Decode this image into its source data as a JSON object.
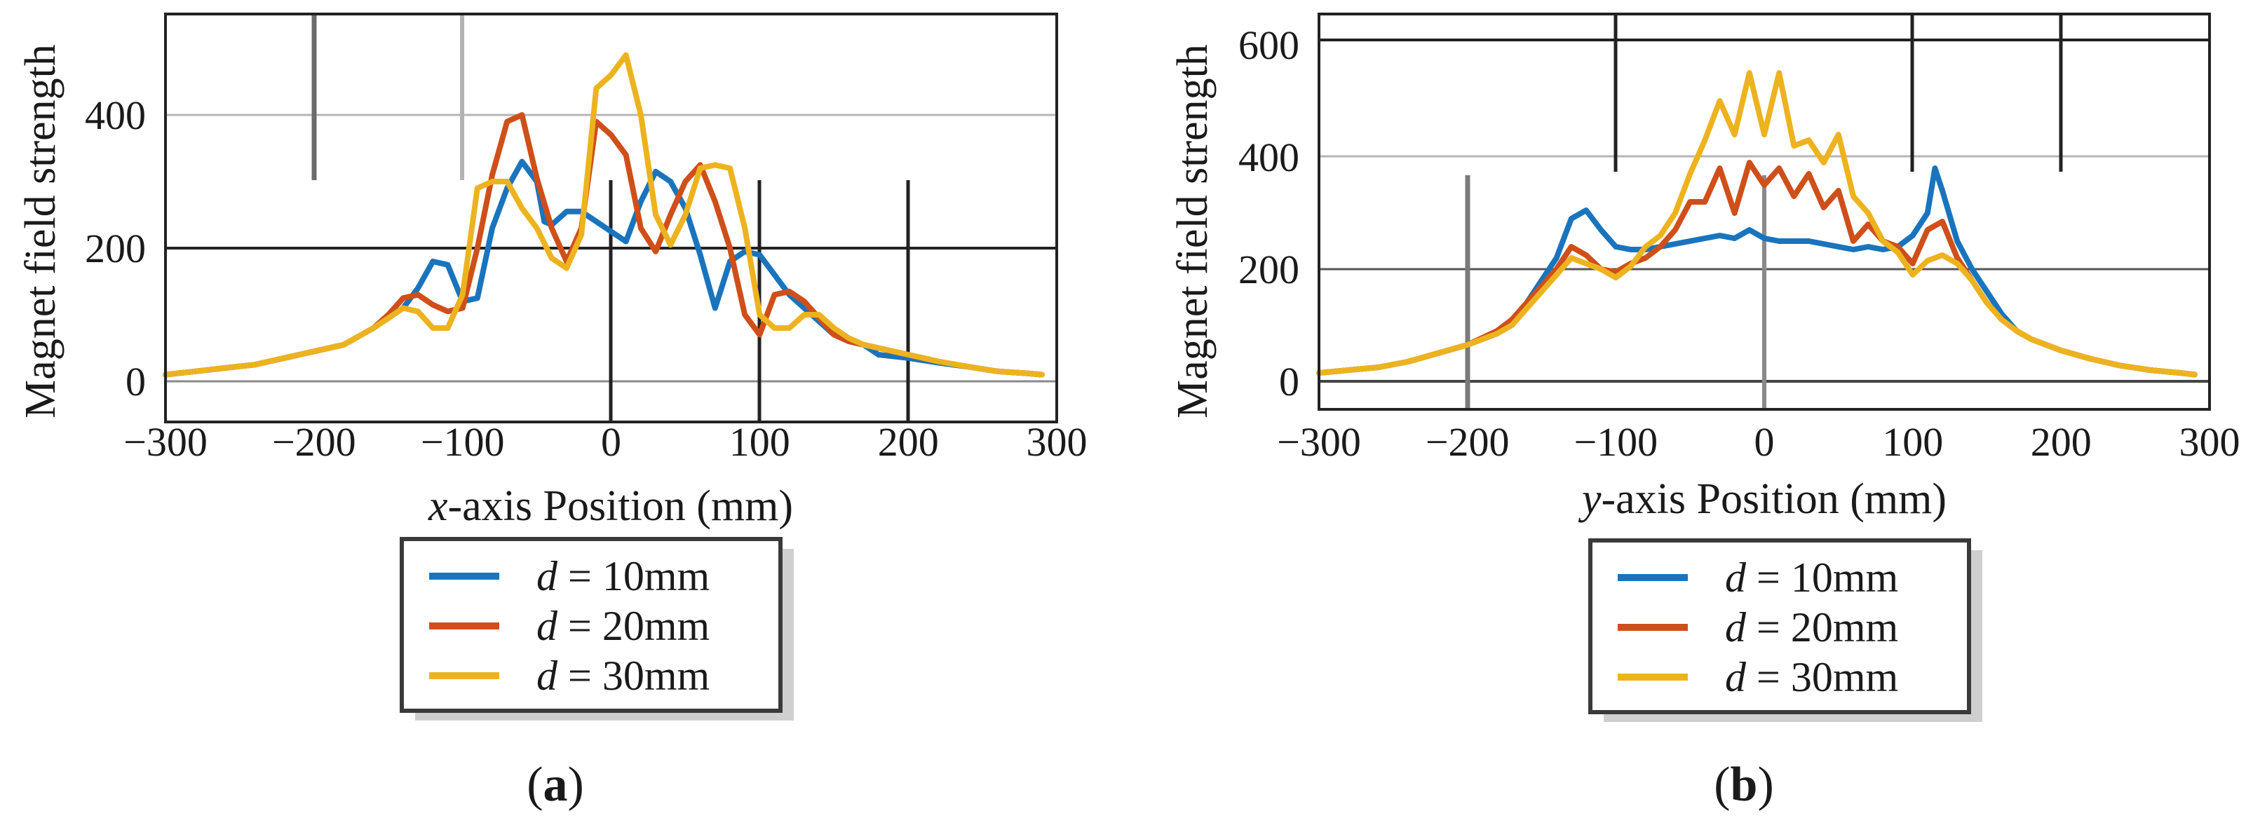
{
  "chart_data": [
    {
      "type": "line",
      "panel_label": "(a)",
      "panel_letter": "a",
      "xlabel_italic": "x",
      "xlabel_rest": "-axis Position (mm)",
      "ylabel": "Magnet field strength",
      "xlim": [
        -300,
        300
      ],
      "ylim": [
        -50,
        540
      ],
      "xticks": [
        -300,
        -200,
        -100,
        0,
        100,
        200,
        300
      ],
      "xtick_labels": [
        "−300",
        "−200",
        "−100",
        "0",
        "100",
        "200",
        "300"
      ],
      "yticks": [
        0,
        200,
        400
      ],
      "ytick_labels": [
        "0",
        "200",
        "400"
      ],
      "legend": [
        {
          "italic": "d",
          "text": " = 10mm"
        },
        {
          "italic": "d",
          "text": " = 20mm"
        },
        {
          "italic": "d",
          "text": " = 30mm"
        }
      ],
      "series": [
        {
          "name": "d = 10mm",
          "color": "#1a74bd",
          "x": [
            -300,
            -280,
            -260,
            -240,
            -220,
            -200,
            -180,
            -160,
            -140,
            -130,
            -120,
            -110,
            -100,
            -90,
            -80,
            -70,
            -60,
            -50,
            -45,
            -40,
            -30,
            -20,
            -10,
            0,
            10,
            20,
            30,
            40,
            50,
            60,
            70,
            80,
            90,
            100,
            110,
            120,
            130,
            140,
            150,
            160,
            170,
            180,
            200,
            220,
            240,
            260,
            280,
            290
          ],
          "y": [
            10,
            15,
            20,
            25,
            35,
            45,
            55,
            80,
            110,
            140,
            180,
            175,
            120,
            125,
            230,
            290,
            330,
            300,
            240,
            235,
            255,
            255,
            240,
            225,
            210,
            270,
            315,
            300,
            260,
            190,
            110,
            180,
            195,
            190,
            160,
            130,
            110,
            90,
            70,
            60,
            55,
            40,
            35,
            28,
            22,
            15,
            12,
            10
          ]
        },
        {
          "name": "d = 20mm",
          "color": "#cf4f1a",
          "x": [
            -300,
            -280,
            -260,
            -240,
            -220,
            -200,
            -180,
            -160,
            -150,
            -140,
            -130,
            -120,
            -110,
            -100,
            -90,
            -80,
            -70,
            -60,
            -50,
            -40,
            -30,
            -20,
            -10,
            0,
            10,
            20,
            30,
            40,
            50,
            60,
            70,
            80,
            90,
            100,
            110,
            120,
            130,
            140,
            150,
            160,
            170,
            180,
            200,
            220,
            240,
            260,
            280,
            290
          ],
          "y": [
            10,
            15,
            20,
            25,
            35,
            45,
            55,
            80,
            100,
            125,
            130,
            115,
            105,
            110,
            200,
            310,
            390,
            400,
            305,
            230,
            180,
            230,
            390,
            370,
            340,
            230,
            195,
            250,
            300,
            325,
            270,
            200,
            100,
            70,
            130,
            135,
            120,
            95,
            70,
            60,
            55,
            50,
            40,
            30,
            22,
            15,
            12,
            10
          ]
        },
        {
          "name": "d = 30mm",
          "color": "#edb31f",
          "x": [
            -300,
            -280,
            -260,
            -240,
            -220,
            -200,
            -180,
            -160,
            -150,
            -140,
            -130,
            -120,
            -110,
            -100,
            -90,
            -80,
            -70,
            -60,
            -50,
            -40,
            -30,
            -20,
            -10,
            0,
            10,
            20,
            30,
            40,
            50,
            60,
            70,
            80,
            90,
            100,
            110,
            120,
            130,
            140,
            150,
            160,
            170,
            180,
            200,
            220,
            240,
            260,
            280,
            290
          ],
          "y": [
            10,
            15,
            20,
            25,
            35,
            45,
            55,
            80,
            95,
            110,
            105,
            80,
            80,
            130,
            290,
            300,
            300,
            260,
            230,
            185,
            170,
            220,
            440,
            460,
            490,
            400,
            250,
            205,
            250,
            320,
            325,
            320,
            230,
            100,
            80,
            80,
            100,
            100,
            80,
            65,
            55,
            50,
            40,
            30,
            22,
            15,
            12,
            10
          ]
        }
      ]
    },
    {
      "type": "line",
      "panel_label": "(b)",
      "panel_letter": "b",
      "xlabel_italic": "y",
      "xlabel_rest": "-axis Position (mm)",
      "ylabel": "Magnet field strength",
      "xlim": [
        -300,
        300
      ],
      "ylim": [
        -50,
        660
      ],
      "xticks": [
        -300,
        -200,
        -100,
        0,
        100,
        200,
        300
      ],
      "xtick_labels": [
        "−300",
        "−200",
        "−100",
        "0",
        "100",
        "200",
        "300"
      ],
      "yticks": [
        0,
        200,
        400,
        600
      ],
      "ytick_labels": [
        "0",
        "200",
        "400",
        "600"
      ],
      "legend": [
        {
          "italic": "d",
          "text": " = 10mm"
        },
        {
          "italic": "d",
          "text": " = 20mm"
        },
        {
          "italic": "d",
          "text": " = 30mm"
        }
      ],
      "series": [
        {
          "name": "d = 10mm",
          "color": "#1a74bd",
          "x": [
            -300,
            -280,
            -260,
            -240,
            -220,
            -200,
            -180,
            -170,
            -160,
            -150,
            -140,
            -130,
            -120,
            -110,
            -100,
            -90,
            -80,
            -70,
            -60,
            -50,
            -40,
            -30,
            -20,
            -10,
            0,
            10,
            20,
            30,
            40,
            50,
            60,
            70,
            80,
            90,
            100,
            110,
            115,
            120,
            130,
            140,
            150,
            160,
            170,
            180,
            200,
            220,
            240,
            260,
            280,
            290
          ],
          "y": [
            15,
            20,
            25,
            35,
            50,
            65,
            85,
            110,
            140,
            180,
            220,
            290,
            305,
            270,
            240,
            235,
            235,
            240,
            245,
            250,
            255,
            260,
            255,
            270,
            255,
            250,
            250,
            250,
            245,
            240,
            235,
            240,
            235,
            240,
            260,
            300,
            380,
            340,
            250,
            200,
            160,
            120,
            90,
            75,
            55,
            40,
            28,
            20,
            15,
            12
          ]
        },
        {
          "name": "d = 20mm",
          "color": "#cf4f1a",
          "x": [
            -300,
            -280,
            -260,
            -240,
            -220,
            -200,
            -180,
            -170,
            -160,
            -150,
            -140,
            -130,
            -120,
            -110,
            -100,
            -90,
            -80,
            -70,
            -60,
            -50,
            -40,
            -30,
            -20,
            -10,
            0,
            10,
            20,
            30,
            40,
            50,
            60,
            70,
            80,
            90,
            100,
            110,
            120,
            130,
            140,
            150,
            160,
            170,
            180,
            200,
            220,
            240,
            260,
            280,
            290
          ],
          "y": [
            15,
            20,
            25,
            35,
            50,
            65,
            90,
            110,
            140,
            170,
            200,
            240,
            225,
            200,
            195,
            210,
            220,
            240,
            270,
            320,
            320,
            380,
            300,
            390,
            350,
            380,
            330,
            370,
            310,
            340,
            250,
            280,
            250,
            240,
            210,
            270,
            285,
            220,
            180,
            140,
            110,
            90,
            75,
            55,
            40,
            28,
            20,
            15,
            12
          ]
        },
        {
          "name": "d = 30mm",
          "color": "#edb31f",
          "x": [
            -300,
            -280,
            -260,
            -240,
            -220,
            -200,
            -180,
            -170,
            -160,
            -150,
            -140,
            -130,
            -120,
            -110,
            -100,
            -90,
            -80,
            -70,
            -60,
            -50,
            -40,
            -30,
            -20,
            -10,
            0,
            10,
            20,
            30,
            40,
            50,
            60,
            70,
            80,
            90,
            100,
            110,
            120,
            130,
            140,
            150,
            160,
            170,
            180,
            200,
            220,
            240,
            260,
            280,
            290
          ],
          "y": [
            15,
            20,
            25,
            35,
            50,
            65,
            85,
            100,
            130,
            160,
            190,
            220,
            210,
            200,
            185,
            205,
            240,
            260,
            300,
            370,
            430,
            500,
            440,
            550,
            440,
            550,
            420,
            430,
            390,
            440,
            330,
            300,
            250,
            230,
            190,
            215,
            225,
            210,
            180,
            140,
            110,
            90,
            75,
            55,
            40,
            28,
            20,
            15,
            12
          ]
        }
      ]
    }
  ]
}
